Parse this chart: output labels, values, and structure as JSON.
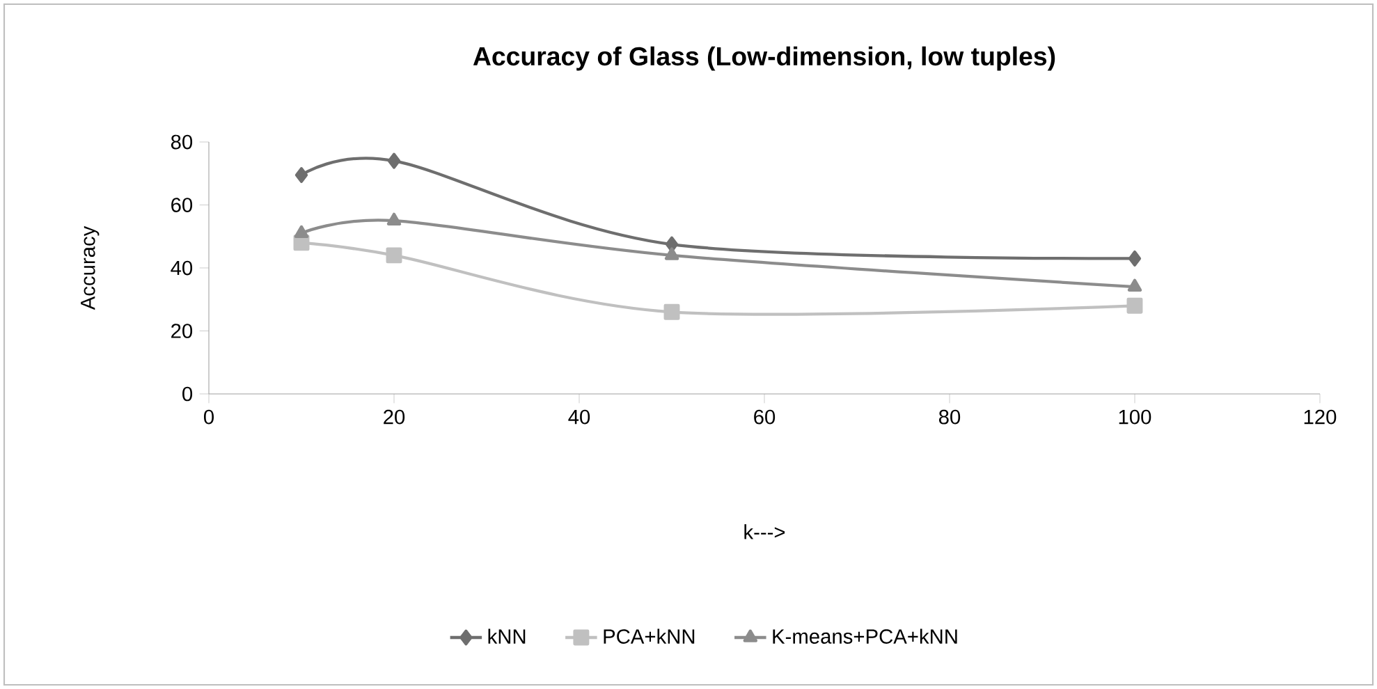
{
  "chart_data": {
    "type": "line",
    "title": "Accuracy of Glass (Low-dimension, low tuples)",
    "xlabel": "k--->",
    "ylabel": "Accuracy",
    "x": [
      10,
      20,
      50,
      100
    ],
    "xlim": [
      0,
      120
    ],
    "xticks": [
      0,
      20,
      40,
      60,
      80,
      100,
      120
    ],
    "ylim": [
      0,
      80
    ],
    "yticks": [
      0,
      20,
      40,
      60,
      80
    ],
    "grid": false,
    "legend": "bottom",
    "series": [
      {
        "name": "kNN",
        "color": "#6e6e6e",
        "marker": "diamond",
        "values": [
          69.5,
          74,
          47.5,
          43
        ]
      },
      {
        "name": "PCA+kNN",
        "color": "#c0c0c0",
        "marker": "square",
        "values": [
          48,
          44,
          26,
          28
        ]
      },
      {
        "name": "K-means+PCA+kNN",
        "color": "#8c8c8c",
        "marker": "triangle",
        "values": [
          51,
          55,
          44,
          34
        ]
      }
    ]
  }
}
